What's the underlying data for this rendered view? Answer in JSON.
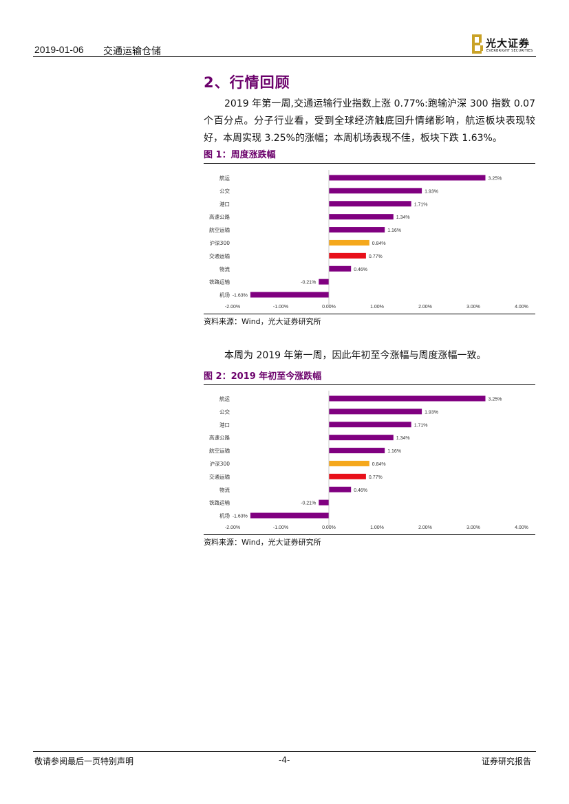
{
  "header": {
    "date": "2019-01-06",
    "sector": "交通运输仓储",
    "logo": {
      "cn": "光大证券",
      "en": "EVERBRIGHT SECURITIES"
    }
  },
  "section": {
    "title": "2、行情回顾",
    "para1": "2019 年第一周,交通运输行业指数上涨 0.77%:跑输沪深 300 指数 0.07 个百分点。分子行业看，受到全球经济触底回升情绪影响，航运板块表现较好，本周实现 3.25%的涨幅；本周机场表现不佳，板块下跌 1.63%。",
    "para2": "本周为 2019 年第一周，因此年初至今涨幅与周度涨幅一致。"
  },
  "figures": [
    {
      "title": "图 1：周度涨跌幅",
      "source": "资料来源：Wind，光大证券研究所"
    },
    {
      "title": "图 2：2019 年初至今涨跌幅",
      "source": "资料来源：Wind，光大证券研究所"
    }
  ],
  "chart_data": [
    {
      "type": "bar",
      "orientation": "horizontal",
      "categories": [
        "航运",
        "公交",
        "港口",
        "高速公路",
        "航空运输",
        "沪深300",
        "交通运输",
        "物流",
        "铁路运输",
        "机场"
      ],
      "values": [
        3.25,
        1.93,
        1.71,
        1.34,
        1.16,
        0.84,
        0.77,
        0.46,
        -0.21,
        -1.63
      ],
      "data_labels": [
        "3.25%",
        "1.93%",
        "1.71%",
        "1.34%",
        "1.16%",
        "0.84%",
        "0.77%",
        "0.46%",
        "-0.21%",
        "-1.63%"
      ],
      "bar_colors": [
        "#800080",
        "#800080",
        "#800080",
        "#800080",
        "#800080",
        "#f5a81c",
        "#e8101a",
        "#800080",
        "#800080",
        "#800080"
      ],
      "xlim": [
        -2,
        4
      ],
      "xticks": [
        -2,
        -1,
        0,
        1,
        2,
        3,
        4
      ],
      "xtick_labels": [
        "-2.00%",
        "-1.00%",
        "0.00%",
        "1.00%",
        "2.00%",
        "3.00%",
        "4.00%"
      ],
      "grid": false,
      "legend": "none"
    },
    {
      "type": "bar",
      "orientation": "horizontal",
      "categories": [
        "航运",
        "公交",
        "港口",
        "高速公路",
        "航空运输",
        "沪深300",
        "交通运输",
        "物流",
        "铁路运输",
        "机场"
      ],
      "values": [
        3.25,
        1.93,
        1.71,
        1.34,
        1.16,
        0.84,
        0.77,
        0.46,
        -0.21,
        -1.63
      ],
      "data_labels": [
        "3.25%",
        "1.93%",
        "1.71%",
        "1.34%",
        "1.16%",
        "0.84%",
        "0.77%",
        "0.46%",
        "-0.21%",
        "-1.63%"
      ],
      "bar_colors": [
        "#800080",
        "#800080",
        "#800080",
        "#800080",
        "#800080",
        "#f5a81c",
        "#e8101a",
        "#800080",
        "#800080",
        "#800080"
      ],
      "xlim": [
        -2,
        4
      ],
      "xticks": [
        -2,
        -1,
        0,
        1,
        2,
        3,
        4
      ],
      "xtick_labels": [
        "-2.00%",
        "-1.00%",
        "0.00%",
        "1.00%",
        "2.00%",
        "3.00%",
        "4.00%"
      ],
      "grid": false,
      "legend": "none"
    }
  ],
  "footer": {
    "left": "敬请参阅最后一页特别声明",
    "page": "-4-",
    "right": "证券研究报告"
  }
}
